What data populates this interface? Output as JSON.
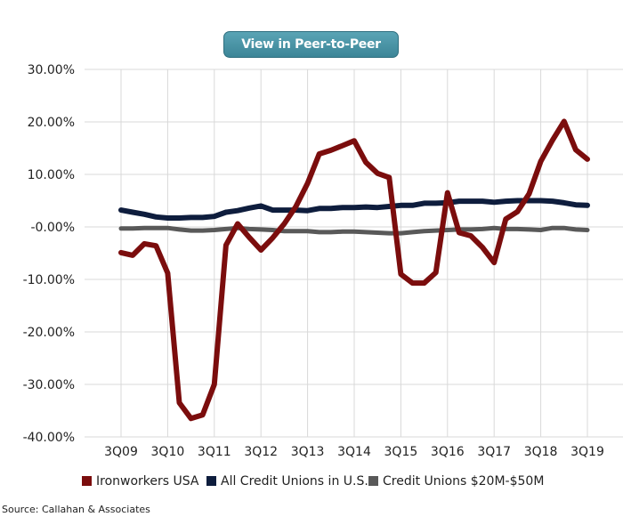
{
  "header": {
    "button_label": "View in Peer-to-Peer"
  },
  "footer": {
    "source": "Source: Callahan & Associates"
  },
  "chart_data": {
    "type": "line",
    "title": "",
    "xlabel": "",
    "ylabel": "",
    "ylim": [
      -40,
      30
    ],
    "yticks": [
      30,
      20,
      10,
      0,
      -10,
      -20,
      -30,
      -40
    ],
    "ytick_labels": [
      "30.00%",
      "20.00%",
      "10.00%",
      "-0.00%",
      "-10.00%",
      "-20.00%",
      "-30.00%",
      "-40.00%"
    ],
    "x": [
      "3Q09",
      "4Q09",
      "1Q10",
      "2Q10",
      "3Q10",
      "4Q10",
      "1Q11",
      "2Q11",
      "3Q11",
      "4Q11",
      "1Q12",
      "2Q12",
      "3Q12",
      "4Q12",
      "1Q13",
      "2Q13",
      "3Q13",
      "4Q13",
      "1Q14",
      "2Q14",
      "3Q14",
      "4Q14",
      "1Q15",
      "2Q15",
      "3Q15",
      "4Q15",
      "1Q16",
      "2Q16",
      "3Q16",
      "4Q16",
      "1Q17",
      "2Q17",
      "3Q17",
      "4Q17",
      "1Q18",
      "2Q18",
      "3Q18",
      "4Q18",
      "1Q19",
      "2Q19",
      "3Q19"
    ],
    "xtick_labels": [
      "3Q09",
      "3Q10",
      "3Q11",
      "3Q12",
      "3Q13",
      "3Q14",
      "3Q15",
      "3Q16",
      "3Q17",
      "3Q18",
      "3Q19"
    ],
    "grid": true,
    "legend_position": "bottom",
    "series": [
      {
        "name": "Ironworkers USA",
        "color": "#7b0d0d",
        "values": [
          -4.9,
          -5.4,
          -3.2,
          -3.6,
          -8.8,
          -33.5,
          -36.5,
          -35.8,
          -30,
          -3.5,
          0.6,
          -2,
          -4.4,
          -2.1,
          0.6,
          3.9,
          8.3,
          13.9,
          14.6,
          15.5,
          16.4,
          12.3,
          10.2,
          9.4,
          -9,
          -10.7,
          -10.7,
          -8.7,
          6.5,
          -1.1,
          -1.7,
          -3.9,
          -6.8,
          1.5,
          2.9,
          6.3,
          12.5,
          16.5,
          20.1,
          14.7,
          12.9
        ]
      },
      {
        "name": "All Credit Unions in U.S.",
        "color": "#0e1d3d",
        "values": [
          3.2,
          2.8,
          2.4,
          1.9,
          1.7,
          1.7,
          1.8,
          1.8,
          2,
          2.8,
          3.1,
          3.6,
          4,
          3.2,
          3.2,
          3.2,
          3.1,
          3.5,
          3.5,
          3.7,
          3.7,
          3.8,
          3.7,
          3.9,
          4.1,
          4.1,
          4.5,
          4.5,
          4.6,
          4.9,
          4.9,
          4.9,
          4.7,
          4.9,
          5,
          5,
          5,
          4.9,
          4.6,
          4.2,
          4.1
        ]
      },
      {
        "name": "Credit Unions $20M-$50M",
        "color": "#595959",
        "values": [
          -0.3,
          -0.3,
          -0.2,
          -0.2,
          -0.2,
          -0.5,
          -0.7,
          -0.7,
          -0.6,
          -0.4,
          -0.2,
          -0.4,
          -0.5,
          -0.6,
          -0.8,
          -0.8,
          -0.8,
          -1,
          -1,
          -0.9,
          -0.9,
          -1,
          -1.1,
          -1.2,
          -1.2,
          -1,
          -0.8,
          -0.7,
          -0.6,
          -0.5,
          -0.5,
          -0.4,
          -0.2,
          -0.4,
          -0.4,
          -0.5,
          -0.6,
          -0.2,
          -0.2,
          -0.5,
          -0.6
        ]
      }
    ]
  }
}
